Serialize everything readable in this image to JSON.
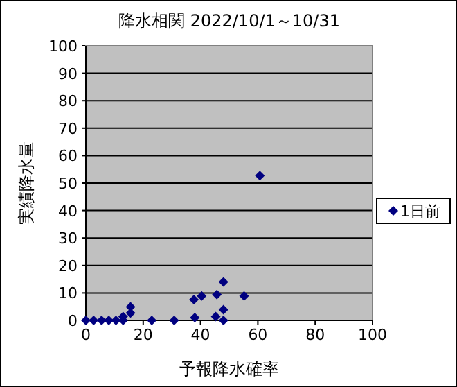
{
  "chart_data": {
    "type": "scatter",
    "title": "降水相関 2022/10/1～10/31",
    "xlabel": "予報降水確率",
    "ylabel": "実績降水量",
    "xlim": [
      0,
      100
    ],
    "xticks": [
      0,
      20,
      40,
      60,
      80,
      100
    ],
    "ylim": [
      0,
      100
    ],
    "yticks": [
      0,
      10,
      20,
      30,
      40,
      50,
      60,
      70,
      80,
      90,
      100
    ],
    "grid": "y",
    "legend": "right",
    "marker": "diamond",
    "series": [
      {
        "name": "1日前",
        "color": "#000080",
        "x": [
          0,
          2.7,
          5.5,
          8,
          10.5,
          13,
          13,
          15.6,
          15.6,
          23,
          30.8,
          37.7,
          38,
          40.4,
          45.3,
          45.7,
          48,
          48,
          48,
          55.2,
          60.7
        ],
        "values": [
          0,
          0,
          0,
          0,
          0,
          0,
          1.4,
          2.7,
          4.9,
          0,
          0,
          7.6,
          1,
          8.9,
          1.4,
          9.4,
          14,
          3.9,
          0,
          8.9,
          52.7
        ]
      }
    ]
  }
}
